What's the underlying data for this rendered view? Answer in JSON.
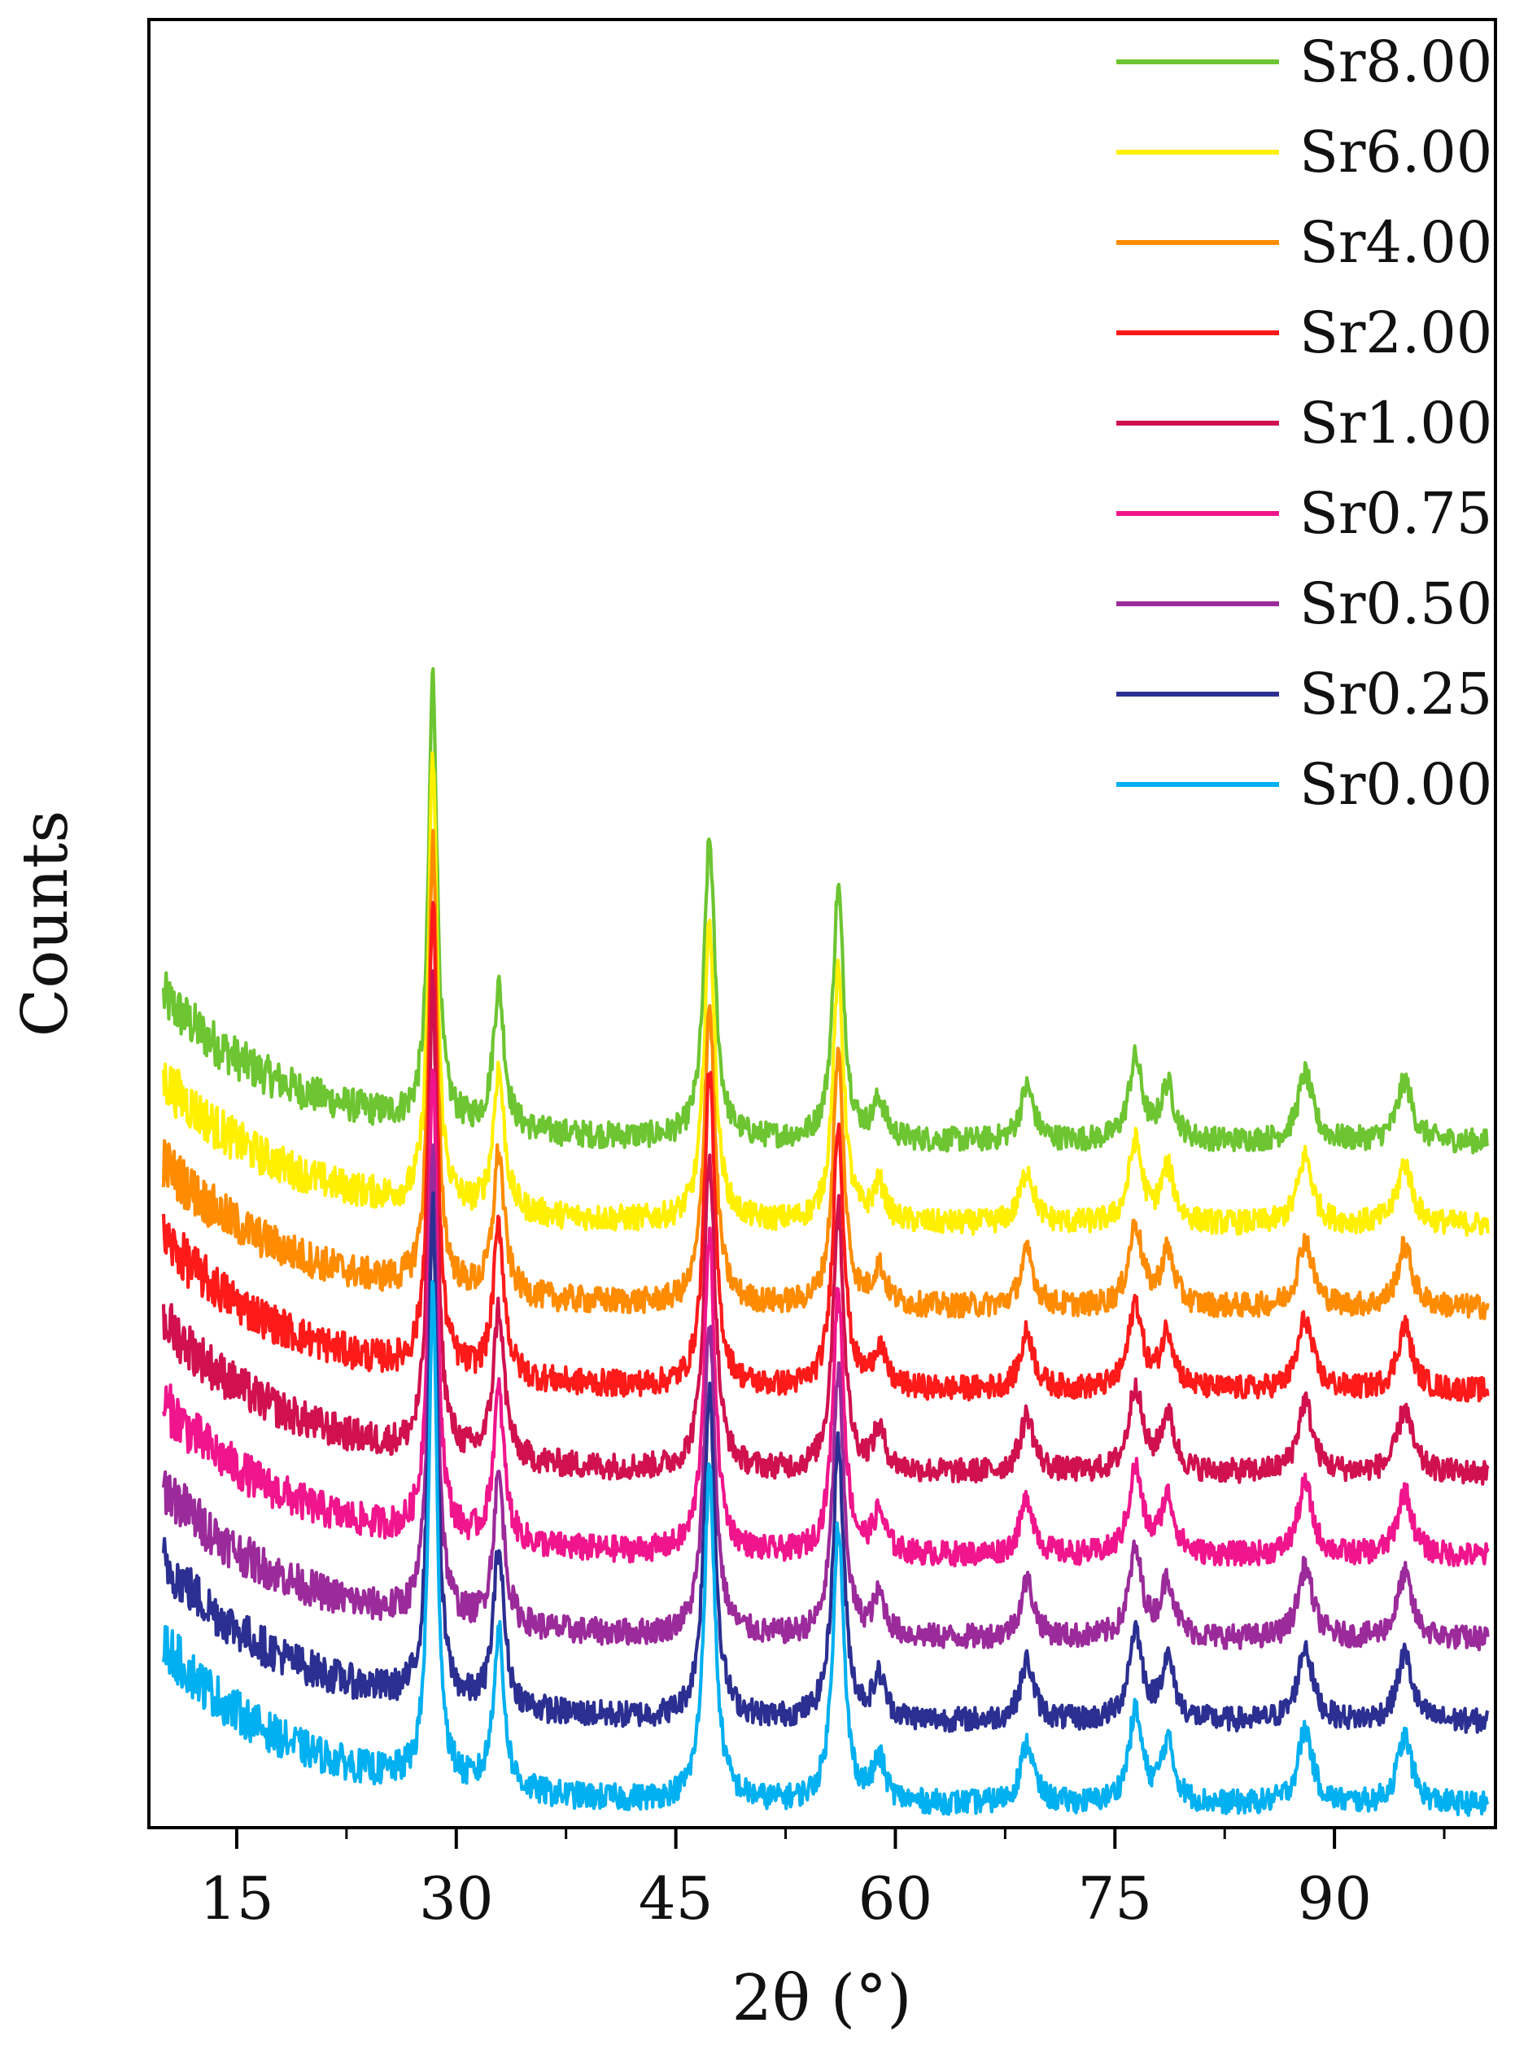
{
  "chart_data": {
    "type": "line",
    "title": "",
    "xlabel": "2θ (°)",
    "ylabel": "Counts",
    "xlim": [
      9,
      101
    ],
    "ylim": [
      0,
      24
    ],
    "x_ticks": [
      15,
      30,
      45,
      60,
      75,
      90
    ],
    "x_minor_step": 7.5,
    "y_ticks": [],
    "grid": false,
    "legend_position": "top-right",
    "peaks": [
      {
        "x": 28.4,
        "h": 6.6,
        "w": 0.35
      },
      {
        "x": 32.9,
        "h": 2.1,
        "w": 0.45
      },
      {
        "x": 47.3,
        "h": 4.4,
        "w": 0.45
      },
      {
        "x": 56.1,
        "h": 3.7,
        "w": 0.45
      },
      {
        "x": 58.9,
        "h": 0.55,
        "w": 0.5
      },
      {
        "x": 69.0,
        "h": 0.8,
        "w": 0.55
      },
      {
        "x": 76.4,
        "h": 1.2,
        "w": 0.55
      },
      {
        "x": 78.6,
        "h": 0.8,
        "w": 0.55
      },
      {
        "x": 88.0,
        "h": 1.0,
        "w": 0.6
      },
      {
        "x": 94.8,
        "h": 0.9,
        "w": 0.6
      }
    ],
    "series": [
      {
        "name": "Sr0.00",
        "color": "#00B0F0",
        "offset": 0.3,
        "scale": 1.0
      },
      {
        "name": "Sr0.25",
        "color": "#2B2F91",
        "offset": 1.4,
        "scale": 1.0
      },
      {
        "name": "Sr0.50",
        "color": "#9B2A9A",
        "offset": 2.5,
        "scale": 0.95
      },
      {
        "name": "Sr0.75",
        "color": "#F0158C",
        "offset": 3.6,
        "scale": 0.95
      },
      {
        "name": "Sr1.00",
        "color": "#D0114D",
        "offset": 4.7,
        "scale": 0.95
      },
      {
        "name": "Sr2.00",
        "color": "#FF1A1A",
        "offset": 5.8,
        "scale": 0.95
      },
      {
        "name": "Sr4.00",
        "color": "#FF8C00",
        "offset": 6.9,
        "scale": 0.9
      },
      {
        "name": "Sr6.00",
        "color": "#FFF000",
        "offset": 8.0,
        "scale": 0.9
      },
      {
        "name": "Sr8.00",
        "color": "#6DC531",
        "offset": 9.1,
        "scale": 0.9
      }
    ]
  }
}
